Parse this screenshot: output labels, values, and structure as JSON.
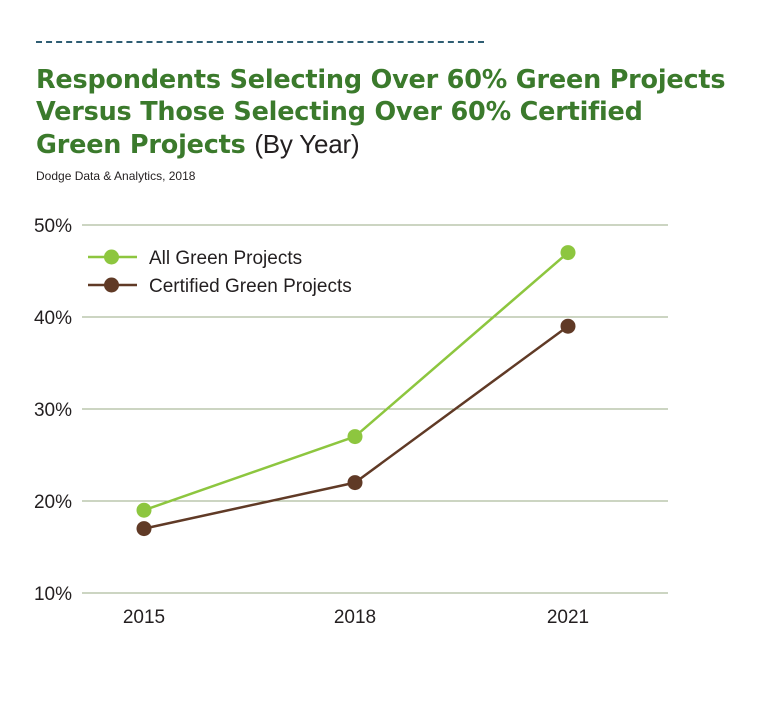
{
  "header": {
    "title_main": "Respondents Selecting Over 60% Green Projects Versus Those Selecting Over 60% Certified Green Projects",
    "title_suffix": "(By Year)",
    "source": "Dodge Data & Analytics, 2018"
  },
  "chart_data": {
    "type": "line",
    "title": "Respondents Selecting Over 60% Green Projects Versus Those Selecting Over 60% Certified Green Projects (By Year)",
    "xlabel": "",
    "ylabel": "",
    "categories": [
      "2015",
      "2018",
      "2021"
    ],
    "y_ticks": [
      10,
      20,
      30,
      40,
      50
    ],
    "y_tick_labels": [
      "10%",
      "20%",
      "30%",
      "40%",
      "50%"
    ],
    "ylim": [
      10,
      50
    ],
    "grid": true,
    "legend_position": "top-left",
    "series": [
      {
        "name": "All Green Projects",
        "values": [
          19,
          27,
          47
        ],
        "color": "#8dc63f"
      },
      {
        "name": "Certified Green Projects",
        "values": [
          17,
          22,
          39
        ],
        "color": "#603a26"
      }
    ]
  },
  "colors": {
    "title_green": "#3b7a2c",
    "grid_line": "#9aab86",
    "dash_rule": "#2f5d73"
  }
}
